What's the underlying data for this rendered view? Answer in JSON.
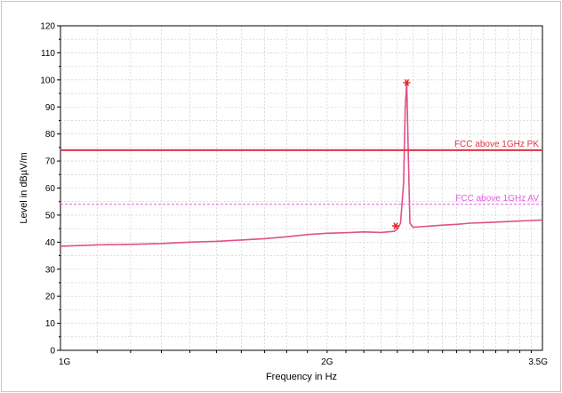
{
  "chart_data": {
    "type": "line",
    "title": "",
    "xlabel": "Frequency in Hz",
    "ylabel": "Level in dBµV/m",
    "xscale": "log",
    "xlim": [
      1000000000,
      3500000000
    ],
    "ylim": [
      0,
      120
    ],
    "x_ticks": [
      {
        "value": 1000000000,
        "label": "1G"
      },
      {
        "value": 2000000000,
        "label": "2G"
      },
      {
        "value": 3500000000,
        "label": "3.5G"
      }
    ],
    "y_ticks": [
      0,
      10,
      20,
      30,
      40,
      50,
      60,
      70,
      80,
      90,
      100,
      110,
      120
    ],
    "grid": true,
    "colors": {
      "trace": "#e0508a",
      "limit_pk": "#dd3344",
      "limit_av": "#e060e0",
      "marker": "#dd2222",
      "grid": "#c8c8c8"
    },
    "series": [
      {
        "type": "line",
        "x": [
          1000000000,
          1100000000,
          1200000000,
          1300000000,
          1400000000,
          1500000000,
          1600000000,
          1700000000,
          1800000000,
          1900000000,
          2000000000,
          2100000000,
          2200000000,
          2300000000,
          2380000000,
          2400000000,
          2420000000,
          2440000000,
          2450000000,
          2460000000,
          2470000000,
          2480000000,
          2500000000,
          2550000000,
          2600000000,
          2700000000,
          2800000000,
          2900000000,
          3000000000,
          3100000000,
          3200000000,
          3300000000,
          3400000000,
          3500000000
        ],
        "values": [
          38.5,
          39,
          39.2,
          39.5,
          40,
          40.3,
          40.8,
          41.3,
          42,
          42.8,
          43.3,
          43.5,
          43.8,
          43.6,
          44,
          44.8,
          47,
          62,
          90,
          99,
          72,
          47,
          45.5,
          45.7,
          45.9,
          46.3,
          46.6,
          47,
          47.2,
          47.4,
          47.6,
          47.8,
          48,
          48.2
        ]
      },
      {
        "name": "FCC above 1GHz PK",
        "type": "limit",
        "x": [
          1000000000,
          3500000000
        ],
        "values": [
          74,
          74
        ]
      },
      {
        "name": "FCC above 1GHz AV",
        "type": "limit",
        "x": [
          1000000000,
          3500000000
        ],
        "values": [
          54,
          54
        ]
      }
    ],
    "markers": [
      {
        "x": 2390000000,
        "y": 46
      },
      {
        "x": 2460000000,
        "y": 99
      }
    ]
  }
}
